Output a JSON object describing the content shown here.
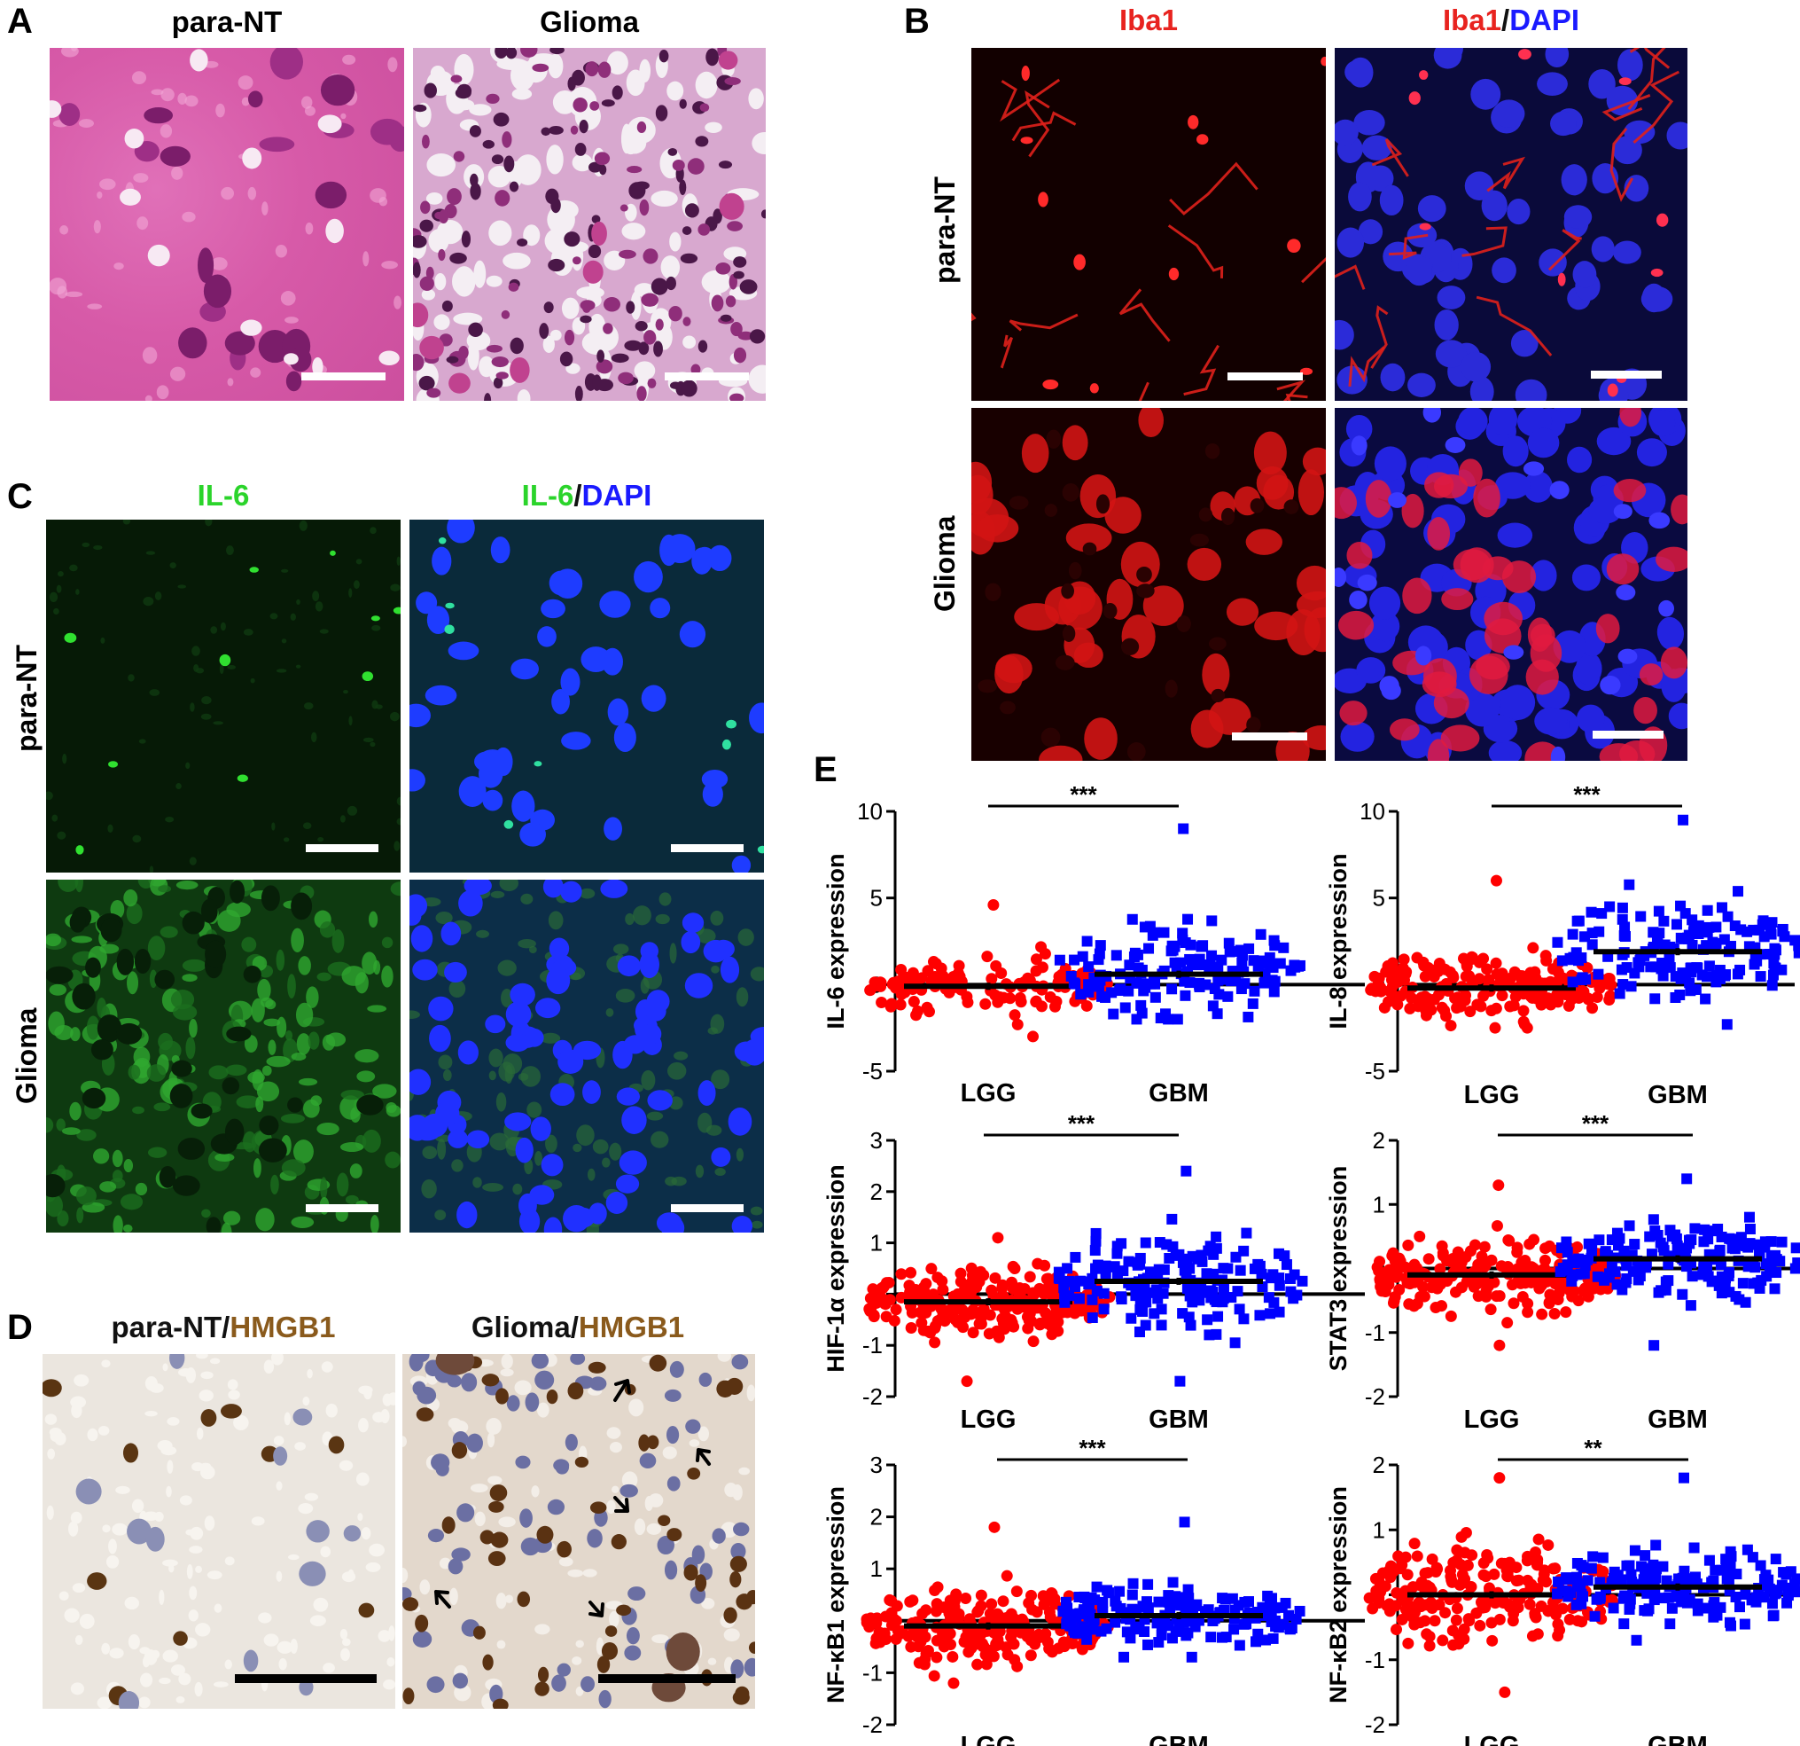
{
  "panels": {
    "A": {
      "letter": "A",
      "columns": [
        "para-NT",
        "Glioma"
      ]
    },
    "B": {
      "letter": "B",
      "columns": [
        [
          {
            "text": "Iba1",
            "color": "#e8231f"
          }
        ],
        [
          {
            "text": "Iba1",
            "color": "#e8231f"
          },
          {
            "text": "/",
            "color": "#111111"
          },
          {
            "text": "DAPI",
            "color": "#1a1aff"
          }
        ]
      ],
      "rows": [
        "para-NT",
        "Glioma"
      ]
    },
    "C": {
      "letter": "C",
      "columns": [
        [
          {
            "text": "IL-6",
            "color": "#2bd42b"
          }
        ],
        [
          {
            "text": "IL-6",
            "color": "#2bd42b"
          },
          {
            "text": "/",
            "color": "#111111"
          },
          {
            "text": "DAPI",
            "color": "#1a1aff"
          }
        ]
      ],
      "rows": [
        "para-NT",
        "Glioma"
      ]
    },
    "D": {
      "letter": "D",
      "columns": [
        [
          {
            "text": "para-NT",
            "color": "#111111"
          },
          {
            "text": "/",
            "color": "#111111"
          },
          {
            "text": "HMGB1",
            "color": "#8a5a1c"
          }
        ],
        [
          {
            "text": "Glioma",
            "color": "#111111"
          },
          {
            "text": "/",
            "color": "#111111"
          },
          {
            "text": "HMGB1",
            "color": "#8a5a1c"
          }
        ]
      ]
    },
    "E": {
      "letter": "E"
    }
  },
  "chart_data": [
    {
      "type": "scatter",
      "ylabel": "IL-6 expression",
      "categories": [
        "LGG",
        "GBM"
      ],
      "yticks": [
        "10",
        "5",
        "0",
        "-5"
      ],
      "ylim": [
        -5,
        10
      ],
      "significance": "***",
      "series": [
        {
          "name": "LGG",
          "color": "#ff0000",
          "marker": "circle",
          "mean": -0.1,
          "min": -3.0,
          "max": 4.6,
          "n": 130
        },
        {
          "name": "GBM",
          "color": "#0000ff",
          "marker": "square",
          "mean": 0.6,
          "min": -2.0,
          "max": 9.0,
          "n": 150
        }
      ]
    },
    {
      "type": "scatter",
      "ylabel": "IL-8 expression",
      "categories": [
        "LGG",
        "GBM"
      ],
      "yticks": [
        "10",
        "5",
        "0",
        "-5"
      ],
      "ylim": [
        -5,
        10
      ],
      "significance": "***",
      "series": [
        {
          "name": "LGG",
          "color": "#ff0000",
          "marker": "circle",
          "mean": -0.2,
          "min": -2.5,
          "max": 6.0,
          "n": 200
        },
        {
          "name": "GBM",
          "color": "#0000ff",
          "marker": "square",
          "mean": 1.9,
          "min": -2.3,
          "max": 9.5,
          "n": 160
        }
      ]
    },
    {
      "type": "scatter",
      "ylabel": "HIF-1α  expression",
      "categories": [
        "LGG",
        "GBM"
      ],
      "yticks": [
        "3",
        "2",
        "1",
        "0",
        "-1",
        "-2"
      ],
      "ylim": [
        -2,
        3
      ],
      "significance": "***",
      "series": [
        {
          "name": "LGG",
          "color": "#ff0000",
          "marker": "circle",
          "mean": -0.15,
          "min": -1.7,
          "max": 1.1,
          "n": 230
        },
        {
          "name": "GBM",
          "color": "#0000ff",
          "marker": "square",
          "mean": 0.25,
          "min": -1.7,
          "max": 2.4,
          "n": 170
        }
      ]
    },
    {
      "type": "scatter",
      "ylabel": "STAT3 expression",
      "categories": [
        "LGG",
        "GBM"
      ],
      "yticks": [
        "2",
        "1",
        "0",
        "-1",
        "-2"
      ],
      "ylim": [
        -2,
        2
      ],
      "significance": "***",
      "series": [
        {
          "name": "LGG",
          "color": "#ff0000",
          "marker": "circle",
          "mean": -0.1,
          "min": -1.2,
          "max": 1.3,
          "n": 230
        },
        {
          "name": "GBM",
          "color": "#0000ff",
          "marker": "square",
          "mean": 0.15,
          "min": -1.2,
          "max": 1.4,
          "n": 170
        }
      ]
    },
    {
      "type": "scatter",
      "ylabel": "NF-κB1 expression",
      "categories": [
        "LGG",
        "GBM"
      ],
      "yticks": [
        "3",
        "2",
        "1",
        "0",
        "-1",
        "-2"
      ],
      "ylim": [
        -2,
        3
      ],
      "significance": "***",
      "series": [
        {
          "name": "LGG",
          "color": "#ff0000",
          "marker": "circle",
          "mean": -0.1,
          "min": -1.2,
          "max": 1.8,
          "n": 230
        },
        {
          "name": "GBM",
          "color": "#0000ff",
          "marker": "square",
          "mean": 0.1,
          "min": -0.7,
          "max": 1.9,
          "n": 170
        }
      ]
    },
    {
      "type": "scatter",
      "ylabel": "NF-κB2 expression",
      "categories": [
        "LGG",
        "GBM"
      ],
      "yticks": [
        "2",
        "1",
        "0",
        "-1",
        "-2"
      ],
      "ylim": [
        -2,
        2
      ],
      "significance": "**",
      "series": [
        {
          "name": "LGG",
          "color": "#ff0000",
          "marker": "circle",
          "mean": 0.0,
          "min": -1.5,
          "max": 1.8,
          "n": 230
        },
        {
          "name": "GBM",
          "color": "#0000ff",
          "marker": "square",
          "mean": 0.12,
          "min": -0.7,
          "max": 1.8,
          "n": 170
        }
      ]
    }
  ]
}
